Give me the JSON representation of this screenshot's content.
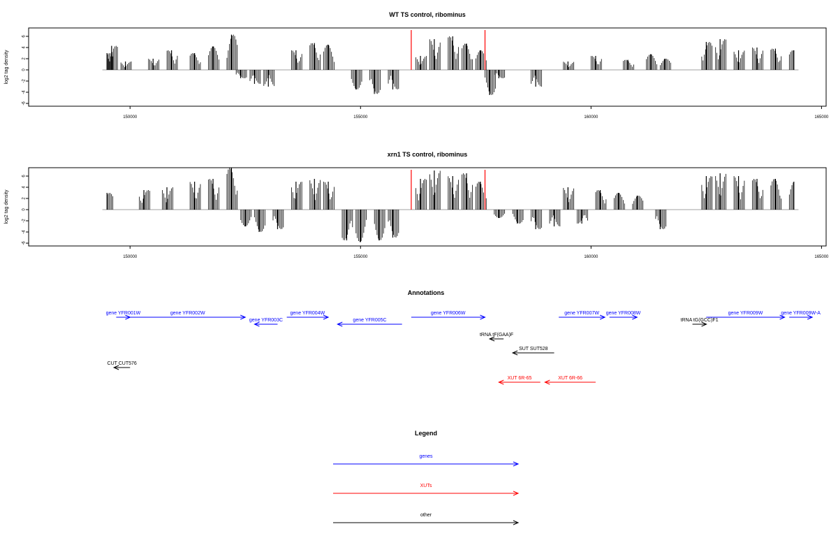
{
  "chart_data": [
    {
      "type": "bar",
      "title": "WT TS control, ribominus",
      "xlabel": "",
      "ylabel": "log2 tag density",
      "xlim": [
        147800,
        165100
      ],
      "ylim": [
        -6.5,
        7.5
      ],
      "x_ticks": [
        150000,
        155000,
        160000,
        165000
      ],
      "x_tick_labels": [
        "150000",
        "155000",
        "160000",
        "165000"
      ],
      "y_ticks": [
        -6,
        -4,
        -2,
        0,
        2,
        4,
        6
      ],
      "y_tick_labels": [
        "-6",
        "-4",
        "-2",
        "0",
        "2",
        "4",
        "6"
      ],
      "markers": [
        156100,
        157700
      ],
      "series": [
        {
          "x": [
            149500,
            149600,
            149900,
            150500,
            150900,
            151400,
            151800,
            152200,
            152400,
            152700,
            153000,
            153600,
            154000,
            154300,
            154900,
            155300,
            155700,
            156300,
            156600,
            157000,
            157300,
            157600,
            157800,
            158000,
            158800,
            159500,
            160100,
            160800,
            161300,
            161600,
            162500,
            162800,
            163200,
            163600,
            164000,
            164400
          ],
          "values": [
            3.0,
            4.3,
            1.5,
            2.0,
            3.5,
            3.0,
            4.2,
            6.3,
            -1.5,
            -2.5,
            -3.0,
            3.5,
            4.8,
            4.5,
            -3.5,
            -4.3,
            -3.5,
            2.5,
            5.5,
            6.0,
            4.7,
            3.5,
            -4.5,
            -1.5,
            -3.0,
            1.5,
            2.5,
            1.8,
            2.8,
            2.0,
            5.0,
            5.5,
            3.5,
            4.0,
            3.8,
            3.5
          ]
        }
      ]
    },
    {
      "type": "bar",
      "title": "xrn1 TS control, ribominus",
      "xlabel": "",
      "ylabel": "log2 tag density",
      "xlim": [
        147800,
        165100
      ],
      "ylim": [
        -6.5,
        7.5
      ],
      "x_ticks": [
        150000,
        155000,
        160000,
        165000
      ],
      "x_tick_labels": [
        "150000",
        "155000",
        "160000",
        "165000"
      ],
      "y_ticks": [
        -6,
        -4,
        -2,
        0,
        2,
        4,
        6
      ],
      "y_tick_labels": [
        "-6",
        "-4",
        "-2",
        "0",
        "2",
        "4",
        "6"
      ],
      "markers": [
        156100,
        157700
      ],
      "series": [
        {
          "x": [
            149500,
            150300,
            150800,
            151400,
            151800,
            152200,
            152500,
            152800,
            153200,
            153600,
            154000,
            154300,
            154700,
            155000,
            155400,
            155700,
            156300,
            156600,
            157000,
            157300,
            157600,
            158000,
            158400,
            158800,
            159200,
            159500,
            159800,
            160200,
            160600,
            161000,
            161500,
            162500,
            162800,
            163200,
            163600,
            164000,
            164400
          ],
          "values": [
            3.0,
            3.5,
            4.0,
            5.0,
            5.5,
            7.5,
            -3.0,
            -4.0,
            -3.5,
            5.0,
            5.5,
            5.0,
            -5.5,
            -5.8,
            -5.5,
            -5.0,
            5.5,
            7.0,
            6.0,
            6.5,
            5.0,
            -1.5,
            -2.5,
            -3.5,
            -3.0,
            4.0,
            -2.5,
            3.5,
            3.0,
            2.5,
            -3.5,
            6.0,
            6.5,
            6.0,
            5.5,
            5.5,
            5.0
          ]
        }
      ]
    },
    {
      "type": "annotation",
      "title": "Annotations",
      "xlim": [
        147800,
        165100
      ],
      "features": [
        {
          "label": "gene YFR001W",
          "start": 149700,
          "end": 149700,
          "dir": 1,
          "kind": "gene",
          "row": 0
        },
        {
          "label": "gene YFR002W",
          "start": 150000,
          "end": 152500,
          "dir": 1,
          "kind": "gene",
          "row": 0
        },
        {
          "label": "gene YFR003C",
          "start": 152700,
          "end": 153200,
          "dir": -1,
          "kind": "gene",
          "row": 1
        },
        {
          "label": "gene YFR004W",
          "start": 153400,
          "end": 154300,
          "dir": 1,
          "kind": "gene",
          "row": 0
        },
        {
          "label": "gene YFR005C",
          "start": 154500,
          "end": 155900,
          "dir": -1,
          "kind": "gene",
          "row": 1
        },
        {
          "label": "gene YFR006W",
          "start": 156100,
          "end": 157700,
          "dir": 1,
          "kind": "gene",
          "row": 0
        },
        {
          "label": "gene YFR007W",
          "start": 159300,
          "end": 160300,
          "dir": 1,
          "kind": "gene",
          "row": 0
        },
        {
          "label": "gene YFR008W",
          "start": 160400,
          "end": 161000,
          "dir": 1,
          "kind": "gene",
          "row": 0
        },
        {
          "label": "gene YFR009W",
          "start": 162500,
          "end": 164200,
          "dir": 1,
          "kind": "gene",
          "row": 0
        },
        {
          "label": "gene YFR009W-A",
          "start": 164300,
          "end": 164800,
          "dir": 1,
          "kind": "gene",
          "row": 0
        },
        {
          "label": "tRNA tF(GAA)F",
          "start": 157800,
          "end": 157900,
          "dir": -1,
          "kind": "other",
          "row": 2
        },
        {
          "label": "tRNA tG(GCC)F1",
          "start": 162200,
          "end": 162300,
          "dir": 1,
          "kind": "other",
          "row": 1
        },
        {
          "label": "SUT SUT528",
          "start": 158300,
          "end": 159200,
          "dir": -1,
          "kind": "other",
          "row": 3
        },
        {
          "label": "CUT CUT576",
          "start": 149650,
          "end": 150000,
          "dir": -1,
          "kind": "other",
          "row": 4
        },
        {
          "label": "XUT 6R-65",
          "start": 158000,
          "end": 158900,
          "dir": -1,
          "kind": "XUT",
          "row": 5
        },
        {
          "label": "XUT 6R-66",
          "start": 159000,
          "end": 160100,
          "dir": -1,
          "kind": "XUT",
          "row": 5
        }
      ]
    },
    {
      "type": "legend",
      "title": "Legend",
      "entries": [
        {
          "label": "genes",
          "color": "#0000ff"
        },
        {
          "label": "XUTs",
          "color": "#ff0000"
        },
        {
          "label": "other",
          "color": "#000000"
        }
      ]
    }
  ],
  "colors": {
    "gene": "#0000ff",
    "XUT": "#ff0000",
    "other": "#000000",
    "marker": "#ff0000",
    "axis": "#000000",
    "baseline": "#808080"
  }
}
